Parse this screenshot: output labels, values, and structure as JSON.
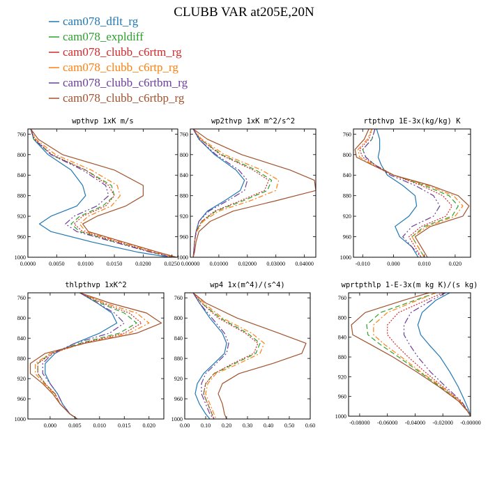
{
  "figure": {
    "title": "CLUBB VAR at205E,20N"
  },
  "legend": [
    {
      "name": "cam078_dflt_rg",
      "color": "#1f77b4",
      "dash": ""
    },
    {
      "name": "cam078_expldiff",
      "color": "#2ca02c",
      "dash": "7 4"
    },
    {
      "name": "cam078_clubb_c6rtm_rg",
      "color": "#d62728",
      "dash": "2 2"
    },
    {
      "name": "cam078_clubb_c6rtp_rg",
      "color": "#ff7f0e",
      "dash": "7 3 2 3"
    },
    {
      "name": "cam078_clubb_c6rtbm_rg",
      "color": "#6a3d9a",
      "dash": "9 3 2 3 2 3"
    },
    {
      "name": "cam078_clubb_c6rtbp_rg",
      "color": "#a0522d",
      "dash": ""
    }
  ],
  "chart_data": [
    {
      "type": "line",
      "title": "wpthvp   1xK m/s",
      "ylim": [
        1000,
        750
      ],
      "xlim": [
        0,
        0.026
      ],
      "yticks": [
        760,
        800,
        840,
        880,
        920,
        960,
        1000
      ],
      "xticks": [
        0,
        0.005,
        0.01,
        0.015,
        0.02,
        0.025
      ],
      "xtick_labels": [
        "0.0000",
        "0.0050",
        "0.0100",
        "0.0150",
        "0.0200",
        "0.0250"
      ],
      "y": [
        750,
        770,
        800,
        830,
        860,
        880,
        900,
        920,
        935,
        950,
        970,
        990,
        1000
      ],
      "series": [
        {
          "values": [
            0.0005,
            0.001,
            0.0035,
            0.0075,
            0.0095,
            0.01,
            0.0085,
            0.004,
            0.002,
            0.004,
            0.011,
            0.019,
            0.0245
          ]
        },
        {
          "values": [
            0.0005,
            0.001,
            0.004,
            0.01,
            0.0145,
            0.015,
            0.013,
            0.009,
            0.0075,
            0.009,
            0.015,
            0.0215,
            0.025
          ]
        },
        {
          "values": [
            0.0005,
            0.0012,
            0.0042,
            0.01,
            0.014,
            0.015,
            0.0135,
            0.0095,
            0.008,
            0.0095,
            0.0155,
            0.0215,
            0.025
          ]
        },
        {
          "values": [
            0.0005,
            0.0014,
            0.0048,
            0.011,
            0.0155,
            0.016,
            0.0145,
            0.0105,
            0.009,
            0.01,
            0.016,
            0.022,
            0.0255
          ]
        },
        {
          "values": [
            0.0005,
            0.0011,
            0.004,
            0.0095,
            0.0135,
            0.014,
            0.012,
            0.008,
            0.0065,
            0.0085,
            0.0148,
            0.0212,
            0.025
          ]
        },
        {
          "values": [
            0.0005,
            0.0018,
            0.006,
            0.015,
            0.02,
            0.02,
            0.017,
            0.012,
            0.0095,
            0.0105,
            0.0165,
            0.0225,
            0.0258
          ]
        }
      ]
    },
    {
      "type": "line",
      "title": "wp2thvp   1xK m^2/s^2",
      "ylim": [
        1000,
        750
      ],
      "xlim": [
        0,
        0.044
      ],
      "yticks": [
        760,
        800,
        840,
        880,
        920,
        960,
        1000
      ],
      "xticks": [
        0,
        0.01,
        0.02,
        0.03,
        0.04
      ],
      "xtick_labels": [
        "0.00000",
        "0.01000",
        "0.02000",
        "0.03000",
        "0.04000"
      ],
      "y": [
        750,
        770,
        800,
        830,
        850,
        870,
        890,
        910,
        930,
        950,
        970,
        990,
        1000
      ],
      "series": [
        {
          "values": [
            0.001,
            0.003,
            0.0085,
            0.016,
            0.019,
            0.0175,
            0.012,
            0.006,
            0.003,
            0.002,
            0.0015,
            0.0012,
            0.001
          ]
        },
        {
          "values": [
            0.001,
            0.0035,
            0.011,
            0.023,
            0.0285,
            0.027,
            0.0185,
            0.009,
            0.004,
            0.002,
            0.0015,
            0.0012,
            0.001
          ]
        },
        {
          "values": [
            0.001,
            0.0035,
            0.0105,
            0.022,
            0.0275,
            0.026,
            0.0175,
            0.0085,
            0.004,
            0.002,
            0.0015,
            0.0012,
            0.001
          ]
        },
        {
          "values": [
            0.001,
            0.004,
            0.012,
            0.025,
            0.031,
            0.03,
            0.021,
            0.01,
            0.0045,
            0.0022,
            0.0015,
            0.0012,
            0.001
          ]
        },
        {
          "values": [
            0.001,
            0.003,
            0.009,
            0.017,
            0.02,
            0.019,
            0.013,
            0.0065,
            0.003,
            0.002,
            0.0015,
            0.0012,
            0.001
          ]
        },
        {
          "values": [
            0.001,
            0.006,
            0.018,
            0.035,
            0.0435,
            0.044,
            0.03,
            0.015,
            0.007,
            0.003,
            0.002,
            0.0015,
            0.001
          ]
        }
      ]
    },
    {
      "type": "line",
      "title": "rtpthvp   1E-3x(kg/kg) K",
      "ylim": [
        1000,
        750
      ],
      "xlim": [
        -0.013,
        0.025
      ],
      "yticks": [
        760,
        800,
        840,
        880,
        920,
        960,
        1000
      ],
      "xticks": [
        -0.01,
        0,
        0.01,
        0.02
      ],
      "xtick_labels": [
        "-0.010",
        "0.000",
        "0.010",
        "0.020"
      ],
      "y": [
        750,
        770,
        790,
        805,
        820,
        840,
        860,
        880,
        900,
        920,
        940,
        960,
        980,
        1000
      ],
      "series": [
        {
          "values": [
            -0.0055,
            -0.0045,
            -0.0045,
            -0.005,
            -0.004,
            -0.002,
            0.003,
            0.007,
            0.0075,
            0.005,
            0.0005,
            0.002,
            0.006,
            0.008
          ]
        },
        {
          "values": [
            -0.006,
            -0.007,
            -0.01,
            -0.009,
            -0.006,
            0.0,
            0.01,
            0.018,
            0.021,
            0.019,
            0.01,
            0.006,
            0.008,
            0.01
          ]
        },
        {
          "values": [
            -0.007,
            -0.008,
            -0.011,
            -0.01,
            -0.006,
            0.0,
            0.009,
            0.016,
            0.019,
            0.017,
            0.009,
            0.005,
            0.007,
            0.009
          ]
        },
        {
          "values": [
            -0.007,
            -0.0085,
            -0.0115,
            -0.011,
            -0.0065,
            0.0,
            0.011,
            0.0195,
            0.0225,
            0.02,
            0.011,
            0.006,
            0.008,
            0.01
          ]
        },
        {
          "values": [
            -0.006,
            -0.007,
            -0.01,
            -0.009,
            -0.006,
            -0.001,
            0.007,
            0.013,
            0.015,
            0.013,
            0.006,
            0.003,
            0.006,
            0.009
          ]
        },
        {
          "values": [
            -0.008,
            -0.0095,
            -0.0125,
            -0.012,
            -0.007,
            0.0,
            0.012,
            0.021,
            0.0245,
            0.0225,
            0.012,
            0.007,
            0.009,
            0.011
          ]
        }
      ]
    },
    {
      "type": "line",
      "title": "thlpthvp   1xK^2",
      "ylim": [
        1000,
        750
      ],
      "xlim": [
        -0.0045,
        0.023
      ],
      "yticks": [
        760,
        800,
        840,
        880,
        920,
        960,
        1000
      ],
      "xticks": [
        0,
        0.005,
        0.01,
        0.015,
        0.02
      ],
      "xtick_labels": [
        "0.000",
        "0.005",
        "0.010",
        "0.015",
        "0.020"
      ],
      "y": [
        750,
        770,
        790,
        810,
        830,
        850,
        870,
        890,
        910,
        930,
        950,
        970,
        990,
        1000
      ],
      "series": [
        {
          "values": [
            0.006,
            0.0095,
            0.0125,
            0.0135,
            0.01,
            0.005,
            0.001,
            -0.001,
            -0.001,
            0.0,
            0.0015,
            0.0025,
            0.004,
            0.0055
          ]
        },
        {
          "values": [
            0.006,
            0.01,
            0.015,
            0.0175,
            0.014,
            0.006,
            0.0,
            -0.0025,
            -0.0025,
            -0.001,
            0.001,
            0.002,
            0.004,
            0.0055
          ]
        },
        {
          "values": [
            0.006,
            0.0105,
            0.016,
            0.0185,
            0.015,
            0.0065,
            0.0005,
            -0.0025,
            -0.0025,
            -0.001,
            0.001,
            0.002,
            0.004,
            0.0055
          ]
        },
        {
          "values": [
            0.006,
            0.011,
            0.0175,
            0.02,
            0.016,
            0.007,
            0.0,
            -0.003,
            -0.003,
            -0.0012,
            0.0008,
            0.002,
            0.004,
            0.0055
          ]
        },
        {
          "values": [
            0.006,
            0.0095,
            0.013,
            0.015,
            0.012,
            0.005,
            0.0005,
            -0.0015,
            -0.0015,
            0.0,
            0.0015,
            0.0025,
            0.004,
            0.0055
          ]
        },
        {
          "values": [
            0.006,
            0.012,
            0.0195,
            0.0225,
            0.0175,
            0.007,
            -0.001,
            -0.004,
            -0.004,
            -0.0015,
            0.0005,
            0.002,
            0.004,
            0.0055
          ]
        }
      ]
    },
    {
      "type": "line",
      "title": "wp4   1x(m^4)/(s^4)",
      "ylim": [
        1000,
        750
      ],
      "xlim": [
        0,
        0.6
      ],
      "yticks": [
        760,
        800,
        840,
        880,
        920,
        960,
        1000
      ],
      "xticks": [
        0,
        0.1,
        0.2,
        0.3,
        0.4,
        0.5,
        0.6
      ],
      "xtick_labels": [
        "0.00",
        "0.10",
        "0.20",
        "0.30",
        "0.40",
        "0.50",
        "0.60"
      ],
      "y": [
        750,
        770,
        800,
        830,
        850,
        870,
        890,
        910,
        930,
        950,
        970,
        990,
        1000
      ],
      "series": [
        {
          "values": [
            0.04,
            0.07,
            0.12,
            0.18,
            0.2,
            0.19,
            0.14,
            0.09,
            0.06,
            0.05,
            0.07,
            0.1,
            0.12
          ]
        },
        {
          "values": [
            0.04,
            0.08,
            0.17,
            0.3,
            0.36,
            0.34,
            0.24,
            0.14,
            0.1,
            0.09,
            0.11,
            0.13,
            0.14
          ]
        },
        {
          "values": [
            0.04,
            0.08,
            0.16,
            0.29,
            0.35,
            0.33,
            0.23,
            0.14,
            0.1,
            0.09,
            0.11,
            0.13,
            0.14
          ]
        },
        {
          "values": [
            0.04,
            0.09,
            0.18,
            0.32,
            0.38,
            0.36,
            0.26,
            0.15,
            0.11,
            0.1,
            0.12,
            0.14,
            0.15
          ]
        },
        {
          "values": [
            0.04,
            0.07,
            0.13,
            0.19,
            0.21,
            0.2,
            0.15,
            0.1,
            0.08,
            0.08,
            0.1,
            0.12,
            0.14
          ]
        },
        {
          "values": [
            0.04,
            0.1,
            0.25,
            0.45,
            0.58,
            0.56,
            0.42,
            0.26,
            0.18,
            0.16,
            0.18,
            0.19,
            0.2
          ]
        }
      ]
    },
    {
      "type": "line",
      "title": "wprtpthlp   1-E-3x(m kg K)/(s kg)",
      "ylim": [
        1000,
        750
      ],
      "xlim": [
        -0.088,
        0
      ],
      "yticks": [
        760,
        800,
        840,
        880,
        920,
        960,
        1000
      ],
      "xticks": [
        -0.08,
        -0.06,
        -0.04,
        -0.02,
        0
      ],
      "xtick_labels": [
        "-0.08000",
        "-0.06000",
        "-0.04000",
        "-0.02000",
        "-0.00000"
      ],
      "y": [
        750,
        765,
        790,
        815,
        835,
        855,
        880,
        910,
        940,
        970,
        990,
        1000
      ],
      "series": [
        {
          "values": [
            -0.015,
            -0.025,
            -0.035,
            -0.038,
            -0.036,
            -0.03,
            -0.022,
            -0.015,
            -0.009,
            -0.004,
            -0.001,
            0.0
          ]
        },
        {
          "values": [
            -0.025,
            -0.04,
            -0.065,
            -0.075,
            -0.074,
            -0.065,
            -0.052,
            -0.037,
            -0.022,
            -0.008,
            -0.002,
            0.0
          ]
        },
        {
          "values": [
            -0.02,
            -0.032,
            -0.052,
            -0.06,
            -0.06,
            -0.054,
            -0.045,
            -0.033,
            -0.02,
            -0.007,
            -0.002,
            0.0
          ]
        },
        {
          "values": [
            -0.025,
            -0.038,
            -0.06,
            -0.07,
            -0.07,
            -0.062,
            -0.05,
            -0.036,
            -0.021,
            -0.0075,
            -0.002,
            0.0
          ]
        },
        {
          "values": [
            -0.018,
            -0.028,
            -0.043,
            -0.048,
            -0.048,
            -0.044,
            -0.038,
            -0.029,
            -0.018,
            -0.0065,
            -0.0018,
            0.0
          ]
        },
        {
          "values": [
            -0.03,
            -0.048,
            -0.076,
            -0.086,
            -0.085,
            -0.072,
            -0.056,
            -0.039,
            -0.023,
            -0.0085,
            -0.0022,
            0.0
          ]
        }
      ]
    }
  ]
}
